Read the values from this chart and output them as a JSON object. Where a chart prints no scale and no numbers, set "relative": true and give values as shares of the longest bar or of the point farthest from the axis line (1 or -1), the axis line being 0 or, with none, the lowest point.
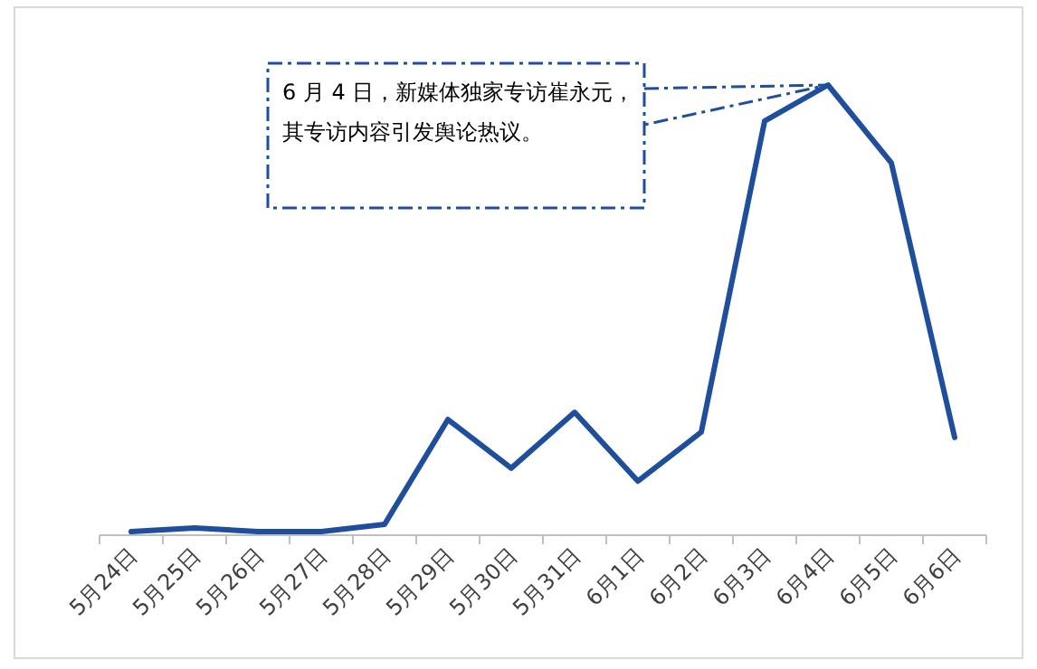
{
  "chart_data": {
    "type": "line",
    "relative": true,
    "categories": [
      "5月24日",
      "5月25日",
      "5月26日",
      "5月27日",
      "5月28日",
      "5月29日",
      "5月30日",
      "5月31日",
      "6月1日",
      "6月2日",
      "6月3日",
      "6月4日",
      "6月5日",
      "6月6日"
    ],
    "series": [
      {
        "color": "#1f4e9c",
        "values": [
          0.008,
          0.016,
          0.008,
          0.008,
          0.024,
          0.257,
          0.149,
          0.273,
          0.12,
          0.229,
          0.92,
          1,
          0.827,
          0.217
        ]
      }
    ],
    "annotations": [
      "6 月 4 日，新媒体独家专访崔永元，其专访内容引发舆论热议。"
    ],
    "marker": "none",
    "line_style": "solid"
  }
}
